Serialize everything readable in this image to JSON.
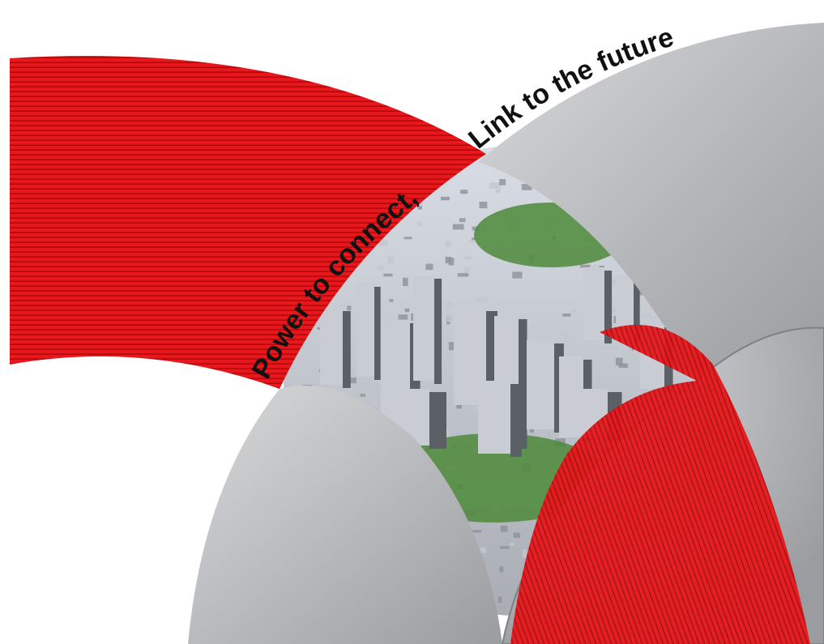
{
  "tagline": {
    "part1": "Power to connect,",
    "part2": "Link to the future",
    "text_color": "#111111"
  },
  "colors": {
    "red_band": "#e8171b",
    "red_stripe": "#a80d10",
    "red_highlight": "#ff3a34",
    "grey_light": "#d8d9db",
    "grey_mid": "#b4b6b9",
    "grey_dark": "#9a9c9f",
    "sky": "#d9dee6",
    "city_buildings": "#a7aab1",
    "city_shadow": "#5b5f66",
    "park_green": "#4e8a3a"
  },
  "scene": {
    "photo": "aerial-city-photo",
    "shapes": [
      "red-striped-arc-band",
      "grey-gradient-arc",
      "grey-disc"
    ]
  }
}
